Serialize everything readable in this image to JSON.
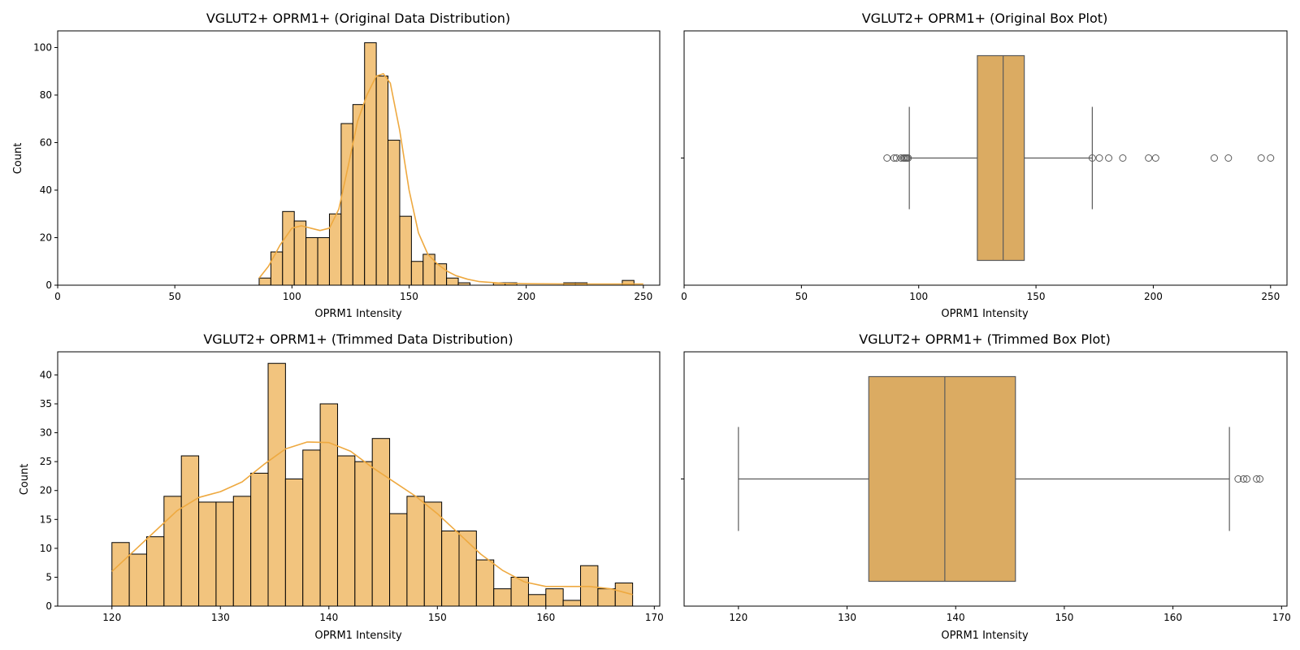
{
  "colors": {
    "bar": "#f2c47e",
    "kde": "#eea940",
    "box": "#dbab62",
    "box_line": "#5b5b5b",
    "edge": "#000000"
  },
  "chart_data": [
    {
      "type": "bar",
      "title": "VGLUT2+ OPRM1+ (Original Data Distribution)",
      "xlabel": "OPRM1 Intensity",
      "ylabel": "Count",
      "xlim": [
        0,
        257
      ],
      "ylim": [
        0,
        107
      ],
      "xticks": [
        0,
        50,
        100,
        150,
        200,
        250
      ],
      "yticks": [
        0,
        20,
        40,
        60,
        80,
        100
      ],
      "bin_edges": [
        86,
        91,
        96,
        101,
        106,
        111,
        116,
        121,
        126,
        131,
        136,
        141,
        146,
        151,
        156,
        161,
        166,
        171,
        176,
        181,
        186,
        191,
        196,
        201,
        206,
        211,
        216,
        221,
        226,
        231,
        236,
        241,
        246,
        251
      ],
      "counts": [
        3,
        14,
        31,
        27,
        20,
        20,
        30,
        68,
        76,
        102,
        88,
        61,
        29,
        10,
        13,
        9,
        3,
        1,
        0,
        0,
        1,
        1,
        0,
        0,
        0,
        0,
        1,
        1,
        0,
        0,
        0,
        2,
        0
      ],
      "kde": {
        "x": [
          86,
          90,
          95,
          100,
          104,
          108,
          112,
          116,
          120,
          124,
          128,
          132,
          136,
          139,
          142,
          146,
          150,
          154,
          158,
          162,
          166,
          170,
          175,
          180,
          190,
          200,
          220,
          235,
          250
        ],
        "y": [
          3,
          8,
          17,
          24,
          25,
          24,
          23,
          24,
          32,
          50,
          69,
          80,
          88,
          89,
          85,
          65,
          40,
          22,
          13,
          9,
          6,
          4,
          2.5,
          1.5,
          0.8,
          0.6,
          0.5,
          0.5,
          0.5
        ]
      }
    },
    {
      "type": "box",
      "title": "VGLUT2+ OPRM1+ (Original Box Plot)",
      "xlabel": "OPRM1 Intensity",
      "xlim": [
        0,
        257
      ],
      "xticks": [
        0,
        50,
        100,
        150,
        200,
        250
      ],
      "whisker_low": 96,
      "q1": 125,
      "median": 136,
      "q3": 145,
      "whisker_high": 174,
      "outliers": [
        86.5,
        89.5,
        90.5,
        92.5,
        93.5,
        94,
        94.5,
        95,
        95.5,
        174,
        177,
        181,
        187,
        198,
        201,
        226,
        232,
        246,
        250
      ]
    },
    {
      "type": "bar",
      "title": "VGLUT2+ OPRM1+ (Trimmed Data Distribution)",
      "xlabel": "OPRM1 Intensity",
      "ylabel": "Count",
      "xlim": [
        115,
        170.5
      ],
      "ylim": [
        0,
        44
      ],
      "xticks": [
        120,
        130,
        140,
        150,
        160,
        170
      ],
      "yticks": [
        0,
        5,
        10,
        15,
        20,
        25,
        30,
        35,
        40
      ],
      "bin_edges": [
        120,
        121.6,
        123.2,
        124.8,
        126.4,
        128,
        129.6,
        131.2,
        132.8,
        134.4,
        136,
        137.6,
        139.2,
        140.8,
        142.4,
        144,
        145.6,
        147.2,
        148.8,
        150.4,
        152,
        153.6,
        155.2,
        156.8,
        158.4,
        160,
        161.6,
        163.2,
        164.8,
        166.4,
        168
      ],
      "counts": [
        11,
        9,
        12,
        19,
        26,
        18,
        18,
        19,
        23,
        42,
        22,
        27,
        35,
        26,
        25,
        29,
        16,
        19,
        18,
        13,
        13,
        8,
        3,
        5,
        2,
        3,
        1,
        7,
        3,
        4
      ],
      "kde": {
        "x": [
          120,
          122,
          124,
          126,
          128,
          130,
          132,
          134,
          136,
          138,
          140,
          142,
          144,
          146,
          148,
          150,
          152,
          154,
          156,
          158,
          160,
          162,
          164,
          166,
          168
        ],
        "y": [
          6,
          9.5,
          13,
          16.5,
          18.8,
          19.8,
          21.5,
          24.5,
          27.2,
          28.4,
          28.3,
          26.8,
          24,
          21.5,
          19,
          16,
          12.5,
          9,
          6.2,
          4.2,
          3.4,
          3.4,
          3.4,
          3,
          2
        ]
      }
    },
    {
      "type": "box",
      "title": "VGLUT2+ OPRM1+ (Trimmed Box Plot)",
      "xlabel": "OPRM1 Intensity",
      "xlim": [
        115,
        170.5
      ],
      "xticks": [
        120,
        130,
        140,
        150,
        160,
        170
      ],
      "whisker_low": 120,
      "q1": 132,
      "median": 139,
      "q3": 145.5,
      "whisker_high": 165.2,
      "outliers": [
        166,
        166.5,
        166.8,
        167.7,
        168
      ]
    }
  ]
}
